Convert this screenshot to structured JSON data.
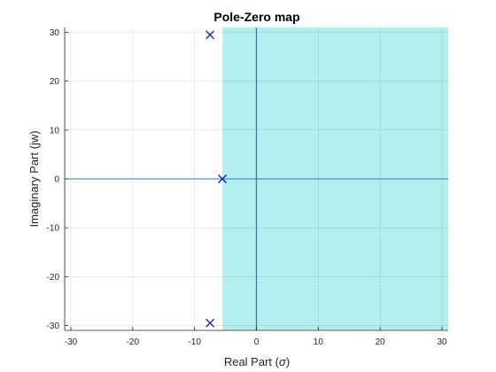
{
  "chart_data": {
    "type": "scatter",
    "title": "Pole-Zero map",
    "xlabel_text": "Real Part (",
    "xlabel_symbol": "σ",
    "xlabel_close": ")",
    "ylabel": "Imaginary Part (jw)",
    "xlim": [
      -31,
      31
    ],
    "ylim": [
      -31,
      31
    ],
    "x_ticks": [
      -30,
      -20,
      -10,
      0,
      10,
      20,
      30
    ],
    "y_ticks": [
      -30,
      -20,
      -10,
      0,
      10,
      20,
      30
    ],
    "grid": true,
    "shaded_region": {
      "x_from": -5.5,
      "x_to": 31,
      "color": "#b2efee"
    },
    "zero_line_color": "#2a7fb8",
    "marker_color": "#1010d8",
    "series": [
      {
        "marker": "x",
        "x": [
          -7.5,
          -7.5,
          -5.5
        ],
        "y": [
          29.5,
          -29.5,
          0
        ]
      }
    ]
  }
}
